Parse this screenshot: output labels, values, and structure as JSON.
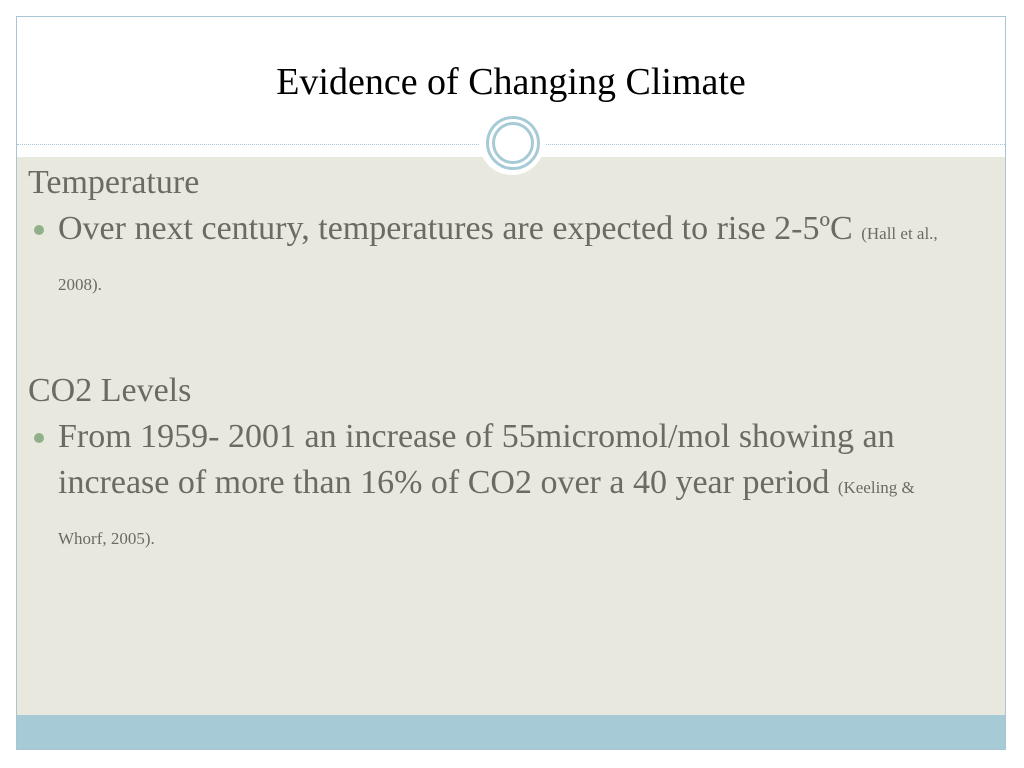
{
  "slide": {
    "title": "Evidence of Changing Climate",
    "colors": {
      "body_background": "#e9e8df",
      "footer_band": "#a7cbd6",
      "border": "#a9c4d2",
      "bullet": "#8fb08a",
      "text": "#6b6b62"
    }
  },
  "sections": [
    {
      "heading": "Temperature",
      "bullet_text": "Over next century, temperatures are expected to rise 2-5ºC",
      "citation": "(Hall et al., 2008)."
    },
    {
      "heading": "CO2 Levels",
      "bullet_text": "From 1959- 2001 an increase of 55micromol/mol showing an increase of more than 16% of CO2 over a 40 year period",
      "citation": "(Keeling & Whorf, 2005)."
    }
  ]
}
